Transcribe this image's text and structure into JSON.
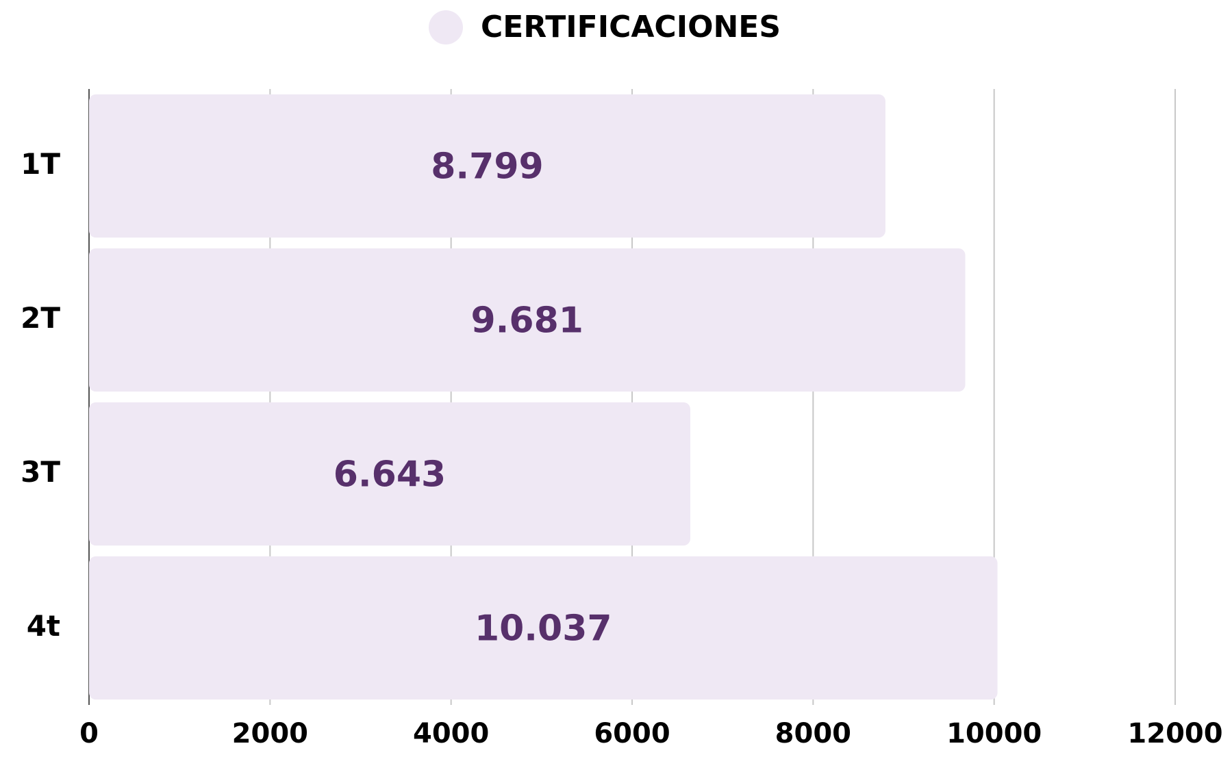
{
  "chart_data": {
    "type": "bar",
    "orientation": "horizontal",
    "categories": [
      "1T",
      "2T",
      "3T",
      "4t"
    ],
    "series": [
      {
        "name": "CERTIFICACIONES",
        "color": "#efe8f4",
        "label_color": "#57306b",
        "values": [
          8799,
          9681,
          6643,
          10037
        ],
        "value_labels": [
          "8.799",
          "9.681",
          "6.643",
          "10.037"
        ]
      }
    ],
    "xlim": [
      0,
      12000
    ],
    "xticks": [
      0,
      2000,
      4000,
      6000,
      8000,
      10000,
      12000
    ],
    "grid": true,
    "legend": "top"
  }
}
